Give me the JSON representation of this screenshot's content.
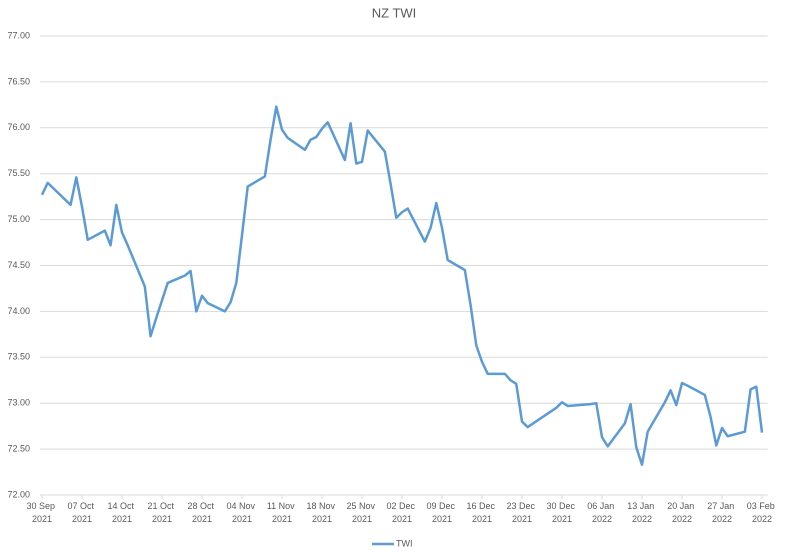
{
  "chart_data": {
    "type": "line",
    "title": "NZ TWI",
    "x": [
      "2021-09-30",
      "2021-10-01",
      "2021-10-04",
      "2021-10-05",
      "2021-10-06",
      "2021-10-07",
      "2021-10-08",
      "2021-10-11",
      "2021-10-12",
      "2021-10-13",
      "2021-10-14",
      "2021-10-15",
      "2021-10-18",
      "2021-10-19",
      "2021-10-20",
      "2021-10-21",
      "2021-10-22",
      "2021-10-25",
      "2021-10-26",
      "2021-10-27",
      "2021-10-28",
      "2021-10-29",
      "2021-11-01",
      "2021-11-02",
      "2021-11-03",
      "2021-11-04",
      "2021-11-05",
      "2021-11-08",
      "2021-11-09",
      "2021-11-10",
      "2021-11-11",
      "2021-11-12",
      "2021-11-15",
      "2021-11-16",
      "2021-11-17",
      "2021-11-18",
      "2021-11-19",
      "2021-11-22",
      "2021-11-23",
      "2021-11-24",
      "2021-11-25",
      "2021-11-26",
      "2021-11-29",
      "2021-11-30",
      "2021-12-01",
      "2021-12-02",
      "2021-12-03",
      "2021-12-06",
      "2021-12-07",
      "2021-12-08",
      "2021-12-09",
      "2021-12-10",
      "2021-12-13",
      "2021-12-14",
      "2021-12-15",
      "2021-12-16",
      "2021-12-17",
      "2021-12-20",
      "2021-12-21",
      "2021-12-22",
      "2021-12-23",
      "2021-12-24",
      "2021-12-29",
      "2021-12-30",
      "2021-12-31",
      "2022-01-04",
      "2022-01-05",
      "2022-01-06",
      "2022-01-07",
      "2022-01-10",
      "2022-01-11",
      "2022-01-12",
      "2022-01-13",
      "2022-01-14",
      "2022-01-17",
      "2022-01-18",
      "2022-01-19",
      "2022-01-20",
      "2022-01-21",
      "2022-01-24",
      "2022-01-25",
      "2022-01-26",
      "2022-01-27",
      "2022-01-28",
      "2022-01-31",
      "2022-02-01",
      "2022-02-02",
      "2022-02-03"
    ],
    "series": [
      {
        "name": "TWI",
        "color": "#5b9bd5",
        "values": [
          75.27,
          75.4,
          75.22,
          75.16,
          75.46,
          75.14,
          74.78,
          74.88,
          74.72,
          75.16,
          74.86,
          74.72,
          74.27,
          73.73,
          73.93,
          74.12,
          74.31,
          74.39,
          74.44,
          74.0,
          74.17,
          74.09,
          74.0,
          74.1,
          74.31,
          74.83,
          75.36,
          75.47,
          75.87,
          76.23,
          75.98,
          75.89,
          75.76,
          75.87,
          75.9,
          75.99,
          76.06,
          75.65,
          76.05,
          75.61,
          75.63,
          75.97,
          75.74,
          75.39,
          75.02,
          75.08,
          75.12,
          74.76,
          74.91,
          75.18,
          74.91,
          74.56,
          74.45,
          74.07,
          73.63,
          73.45,
          73.32,
          73.32,
          73.25,
          73.21,
          72.8,
          72.74,
          72.95,
          73.01,
          72.97,
          72.99,
          73.0,
          72.63,
          72.53,
          72.78,
          72.99,
          72.52,
          72.33,
          72.69,
          73.01,
          73.14,
          72.98,
          73.22,
          73.19,
          73.09,
          72.85,
          72.54,
          72.73,
          72.64,
          72.69,
          73.15,
          73.18,
          72.68
        ]
      }
    ],
    "xlim": [
      "2021-09-30",
      "2022-02-04"
    ],
    "xticks": [
      {
        "value": "2021-09-30",
        "label": "30 Sep 2021"
      },
      {
        "value": "2021-10-07",
        "label": "07 Oct 2021"
      },
      {
        "value": "2021-10-14",
        "label": "14 Oct 2021"
      },
      {
        "value": "2021-10-21",
        "label": "21 Oct 2021"
      },
      {
        "value": "2021-10-28",
        "label": "28 Oct 2021"
      },
      {
        "value": "2021-11-04",
        "label": "04 Nov 2021"
      },
      {
        "value": "2021-11-11",
        "label": "11 Nov 2021"
      },
      {
        "value": "2021-11-18",
        "label": "18 Nov 2021"
      },
      {
        "value": "2021-11-25",
        "label": "25 Nov 2021"
      },
      {
        "value": "2021-12-02",
        "label": "02 Dec 2021"
      },
      {
        "value": "2021-12-09",
        "label": "09 Dec 2021"
      },
      {
        "value": "2021-12-16",
        "label": "16 Dec 2021"
      },
      {
        "value": "2021-12-23",
        "label": "23 Dec 2021"
      },
      {
        "value": "2021-12-30",
        "label": "30 Dec 2021"
      },
      {
        "value": "2022-01-06",
        "label": "06 Jan 2022"
      },
      {
        "value": "2022-01-13",
        "label": "13 Jan 2022"
      },
      {
        "value": "2022-01-20",
        "label": "20 Jan 2022"
      },
      {
        "value": "2022-01-27",
        "label": "27 Jan 2022"
      },
      {
        "value": "2022-02-03",
        "label": "03 Feb 2022"
      }
    ],
    "ylim": [
      72,
      77
    ],
    "yticks": [
      {
        "value": 72,
        "label": "72.00"
      },
      {
        "value": 72.5,
        "label": "72.50"
      },
      {
        "value": 73,
        "label": "73.00"
      },
      {
        "value": 73.5,
        "label": "73.50"
      },
      {
        "value": 74,
        "label": "74.00"
      },
      {
        "value": 74.5,
        "label": "74.50"
      },
      {
        "value": 75,
        "label": "75.00"
      },
      {
        "value": 75.5,
        "label": "75.50"
      },
      {
        "value": 76,
        "label": "76.00"
      },
      {
        "value": 76.5,
        "label": "76.50"
      },
      {
        "value": 77,
        "label": "77.00"
      }
    ],
    "grid": true,
    "legend": "bottom"
  }
}
